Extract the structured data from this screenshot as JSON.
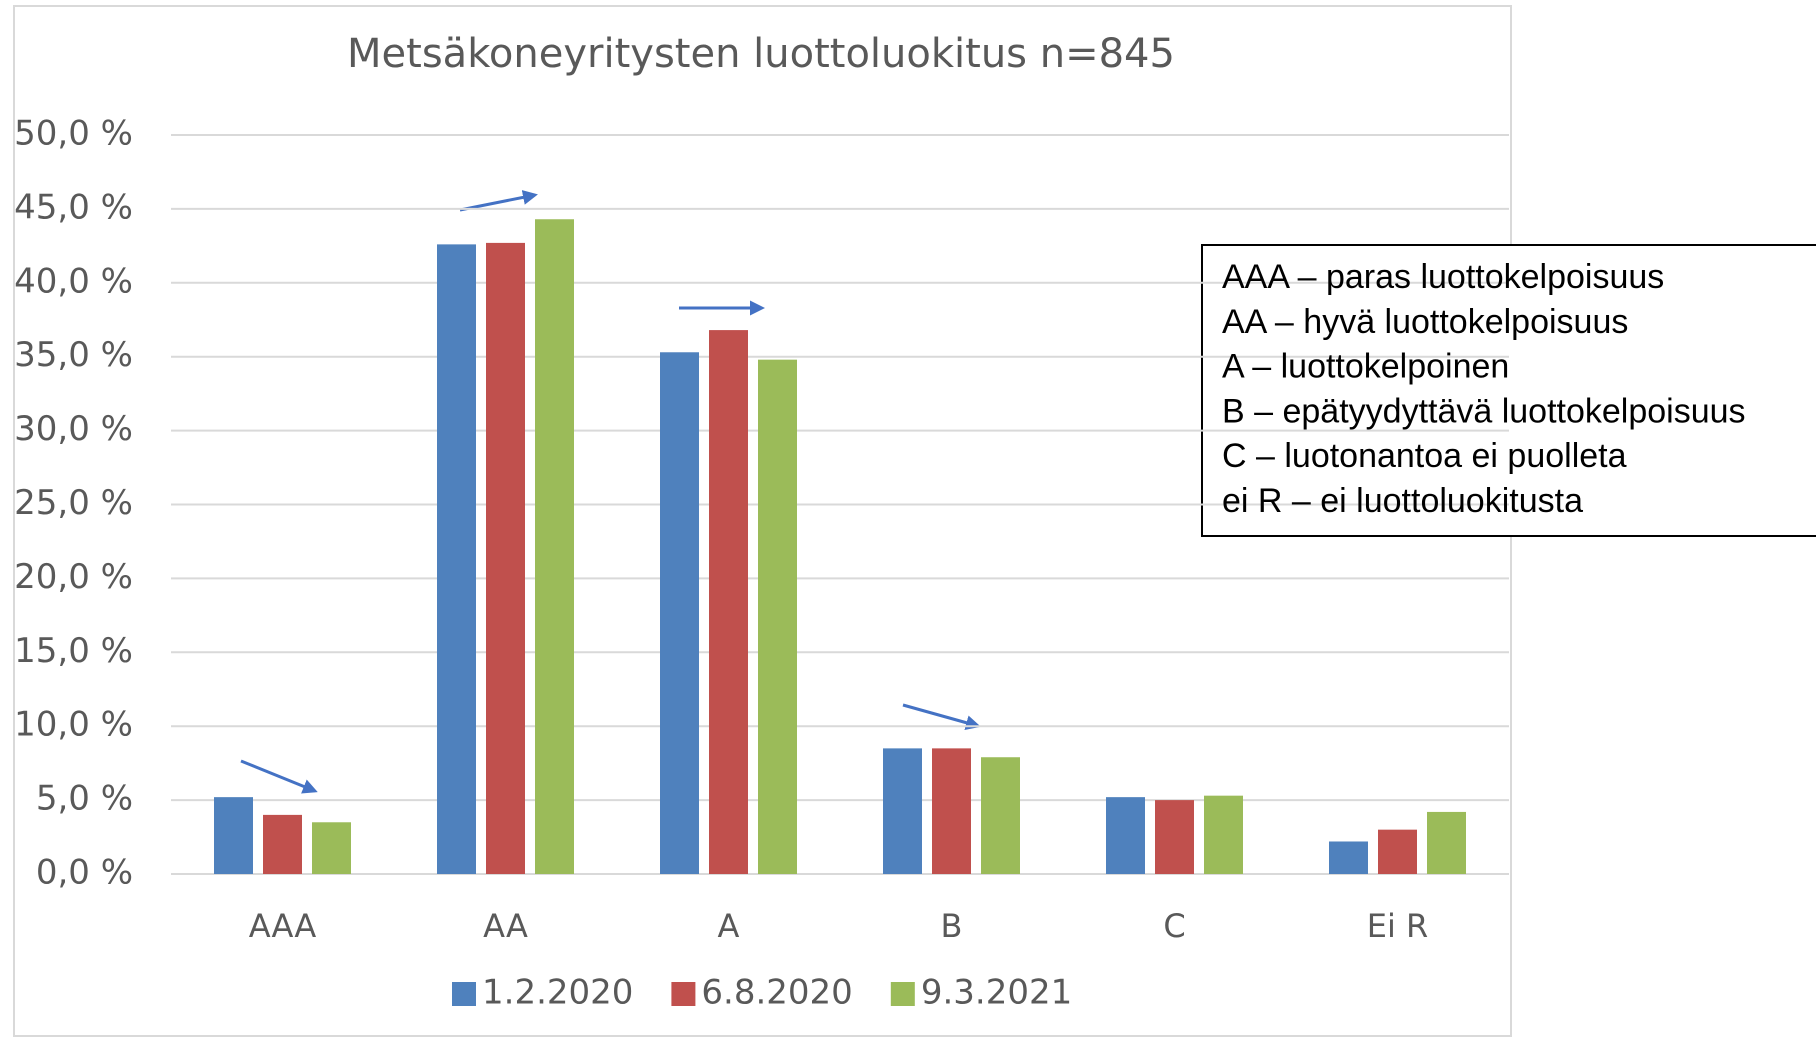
{
  "chart_data": {
    "type": "bar",
    "title": "Metsäkoneyritysten luottoluokitus n=845",
    "categories": [
      "AAA",
      "AA",
      "A",
      "B",
      "C",
      "Ei R"
    ],
    "series": [
      {
        "name": "1.2.2020",
        "color": "#4f81bd",
        "values": [
          5.2,
          42.6,
          35.3,
          8.5,
          5.2,
          2.2
        ]
      },
      {
        "name": "6.8.2020",
        "color": "#c0504d",
        "values": [
          4.0,
          42.7,
          36.8,
          8.5,
          5.0,
          3.0
        ]
      },
      {
        "name": "9.3.2021",
        "color": "#9bbb59",
        "values": [
          3.5,
          44.3,
          34.8,
          7.9,
          5.3,
          4.2
        ]
      }
    ],
    "ylim": [
      0,
      50
    ],
    "yticks": [
      {
        "value": 0,
        "label": "0,0 %"
      },
      {
        "value": 5,
        "label": "5,0 %"
      },
      {
        "value": 10,
        "label": "10,0 %"
      },
      {
        "value": 15,
        "label": "15,0 %"
      },
      {
        "value": 20,
        "label": "20,0 %"
      },
      {
        "value": 25,
        "label": "25,0 %"
      },
      {
        "value": 30,
        "label": "30,0 %"
      },
      {
        "value": 35,
        "label": "35,0 %"
      },
      {
        "value": 40,
        "label": "40,0 %"
      },
      {
        "value": 45,
        "label": "45,0 %"
      },
      {
        "value": 50,
        "label": "50,0 %"
      }
    ],
    "grid": true,
    "legend": "bottom",
    "notes": [
      "AAA – paras luottokelpoisuus",
      "AA – hyvä luottokelpoisuus",
      "A – luottokelpoinen",
      "B – epätyydyttävä luottokelpoisuus",
      "C – luotonantoa ei puolleta",
      "ei R – ei luottoluokitusta"
    ]
  }
}
